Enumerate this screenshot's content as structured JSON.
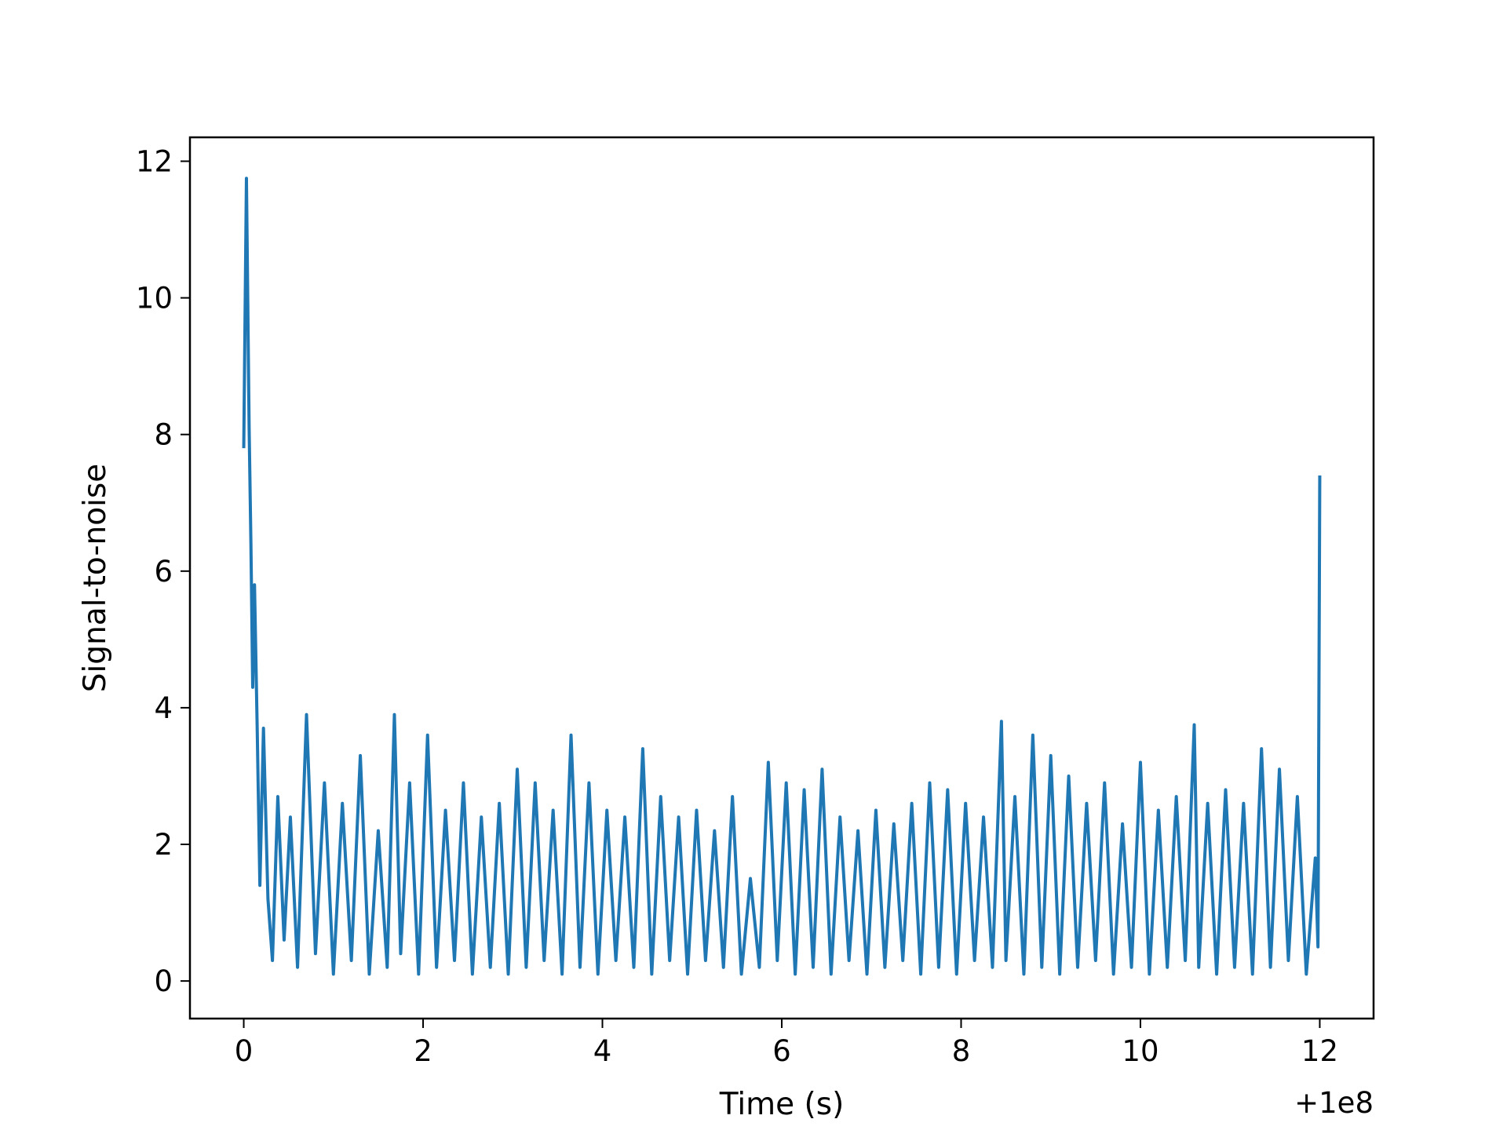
{
  "chart_data": {
    "type": "line",
    "title": "",
    "xlabel": "Time (s)",
    "ylabel": "Signal-to-noise",
    "x_offset_label": "+1e8",
    "xlim": [
      -0.6,
      12.6
    ],
    "ylim": [
      -0.55,
      12.35
    ],
    "xticks": [
      0,
      2,
      4,
      6,
      8,
      10,
      12
    ],
    "xtick_labels": [
      "0",
      "2",
      "4",
      "6",
      "8",
      "10",
      "12"
    ],
    "yticks": [
      0,
      2,
      4,
      6,
      8,
      10,
      12
    ],
    "ytick_labels": [
      "0",
      "2",
      "4",
      "6",
      "8",
      "10",
      "12"
    ],
    "grid": false,
    "legend": "none",
    "line_color": "#1f77b4",
    "series": [
      {
        "x": [
          0.0,
          0.03,
          0.06,
          0.08,
          0.1,
          0.12,
          0.15,
          0.18,
          0.22,
          0.27,
          0.32,
          0.38,
          0.45,
          0.52,
          0.6,
          0.7,
          0.8,
          0.9,
          1.0,
          1.1,
          1.2,
          1.3,
          1.4,
          1.5,
          1.6,
          1.68,
          1.75,
          1.85,
          1.95,
          2.05,
          2.15,
          2.25,
          2.35,
          2.45,
          2.55,
          2.65,
          2.75,
          2.85,
          2.95,
          3.05,
          3.15,
          3.25,
          3.35,
          3.45,
          3.55,
          3.65,
          3.75,
          3.85,
          3.95,
          4.05,
          4.15,
          4.25,
          4.35,
          4.45,
          4.55,
          4.65,
          4.75,
          4.85,
          4.95,
          5.05,
          5.15,
          5.25,
          5.35,
          5.45,
          5.55,
          5.65,
          5.75,
          5.85,
          5.95,
          6.05,
          6.15,
          6.25,
          6.35,
          6.45,
          6.55,
          6.65,
          6.75,
          6.85,
          6.95,
          7.05,
          7.15,
          7.25,
          7.35,
          7.45,
          7.55,
          7.65,
          7.75,
          7.85,
          7.95,
          8.05,
          8.15,
          8.25,
          8.35,
          8.45,
          8.5,
          8.6,
          8.7,
          8.8,
          8.9,
          9.0,
          9.1,
          9.2,
          9.3,
          9.4,
          9.5,
          9.6,
          9.7,
          9.8,
          9.9,
          10.0,
          10.1,
          10.2,
          10.3,
          10.4,
          10.5,
          10.6,
          10.65,
          10.75,
          10.85,
          10.95,
          11.05,
          11.15,
          11.25,
          11.35,
          11.45,
          11.55,
          11.65,
          11.75,
          11.85,
          11.95,
          11.98,
          12.0
        ],
        "y": [
          7.8,
          11.75,
          8.1,
          6.4,
          4.3,
          5.8,
          3.7,
          1.4,
          3.7,
          1.2,
          0.3,
          2.7,
          0.6,
          2.4,
          0.2,
          3.9,
          0.4,
          2.9,
          0.1,
          2.6,
          0.3,
          3.3,
          0.1,
          2.2,
          0.2,
          3.9,
          0.4,
          2.9,
          0.1,
          3.6,
          0.2,
          2.5,
          0.3,
          2.9,
          0.1,
          2.4,
          0.2,
          2.6,
          0.1,
          3.1,
          0.2,
          2.9,
          0.3,
          2.5,
          0.1,
          3.6,
          0.2,
          2.9,
          0.1,
          2.5,
          0.3,
          2.4,
          0.2,
          3.4,
          0.1,
          2.7,
          0.3,
          2.4,
          0.1,
          2.5,
          0.3,
          2.2,
          0.2,
          2.7,
          0.1,
          1.5,
          0.2,
          3.2,
          0.3,
          2.9,
          0.1,
          2.8,
          0.2,
          3.1,
          0.1,
          2.4,
          0.3,
          2.2,
          0.1,
          2.5,
          0.2,
          2.3,
          0.3,
          2.6,
          0.1,
          2.9,
          0.2,
          2.8,
          0.1,
          2.6,
          0.3,
          2.4,
          0.2,
          3.8,
          0.3,
          2.7,
          0.1,
          3.6,
          0.2,
          3.3,
          0.1,
          3.0,
          0.2,
          2.6,
          0.3,
          2.9,
          0.1,
          2.3,
          0.2,
          3.2,
          0.1,
          2.5,
          0.2,
          2.7,
          0.3,
          3.75,
          0.2,
          2.6,
          0.1,
          2.8,
          0.2,
          2.6,
          0.1,
          3.4,
          0.2,
          3.1,
          0.3,
          2.7,
          0.1,
          1.8,
          0.5,
          7.4
        ]
      }
    ]
  }
}
